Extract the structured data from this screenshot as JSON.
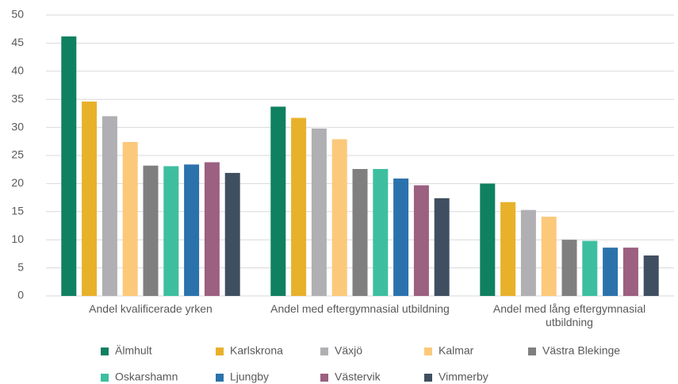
{
  "chart_data": {
    "type": "bar",
    "categories": [
      "Andel kvalificerade yrken",
      "Andel med eftergymnasial utbildning",
      "Andel med lång eftergymnasial utbildning"
    ],
    "series": [
      {
        "name": "Älmhult",
        "color": "#0f8060",
        "values": [
          46.2,
          33.7,
          20.0
        ]
      },
      {
        "name": "Karlskrona",
        "color": "#e8b12a",
        "values": [
          34.6,
          31.7,
          16.7
        ]
      },
      {
        "name": "Växjö",
        "color": "#b0b0b4",
        "values": [
          32.0,
          29.8,
          15.3
        ]
      },
      {
        "name": "Kalmar",
        "color": "#fcc97a",
        "values": [
          27.4,
          27.9,
          14.1
        ]
      },
      {
        "name": "Västra Blekinge",
        "color": "#7f7f80",
        "values": [
          23.2,
          22.6,
          10.0
        ]
      },
      {
        "name": "Oskarshamn",
        "color": "#3dbf9f",
        "values": [
          23.1,
          22.6,
          9.8
        ]
      },
      {
        "name": "Ljungby",
        "color": "#2b72ac",
        "values": [
          23.4,
          20.9,
          8.6
        ]
      },
      {
        "name": "Västervik",
        "color": "#9c6080",
        "values": [
          23.8,
          19.7,
          8.6
        ]
      },
      {
        "name": "Vimmerby",
        "color": "#3f4f5f",
        "values": [
          21.9,
          17.4,
          7.2
        ]
      }
    ],
    "ylim": [
      0,
      50
    ],
    "yticks": [
      0,
      5,
      10,
      15,
      20,
      25,
      30,
      35,
      40,
      45,
      50
    ],
    "grid": true,
    "legend": "bottom"
  }
}
